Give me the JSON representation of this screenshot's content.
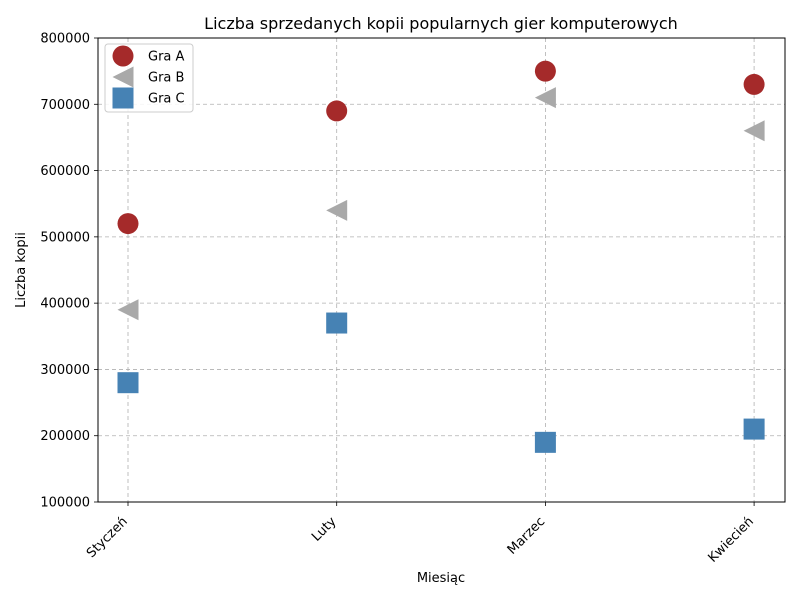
{
  "chart_data": {
    "type": "scatter",
    "title": "Liczba sprzedanych kopii popularnych gier komputerowych",
    "xlabel": "Miesiąc",
    "ylabel": "Liczba kopii",
    "categories": [
      "Styczeń",
      "Luty",
      "Marzec",
      "Kwiecień"
    ],
    "ylim": [
      100000,
      800000
    ],
    "yticks": [
      100000,
      200000,
      300000,
      400000,
      500000,
      600000,
      700000,
      800000
    ],
    "grid": true,
    "legend_position": "top-left",
    "series": [
      {
        "name": "Gra A",
        "marker": "circle",
        "color": "#a52a2a",
        "values": [
          520000,
          690000,
          750000,
          730000
        ]
      },
      {
        "name": "Gra B",
        "marker": "triangle-left",
        "color": "#a9a9a9",
        "values": [
          390000,
          540000,
          710000,
          660000
        ]
      },
      {
        "name": "Gra C",
        "marker": "square",
        "color": "#4682b4",
        "values": [
          280000,
          370000,
          190000,
          210000
        ]
      }
    ]
  }
}
